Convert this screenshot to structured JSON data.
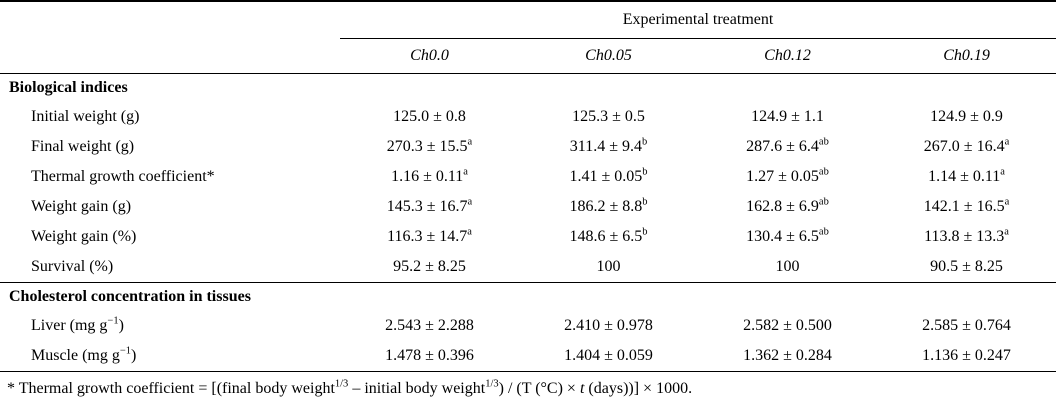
{
  "table": {
    "spanner_header": "Experimental treatment",
    "columns": [
      "Ch0.0",
      "Ch0.05",
      "Ch0.12",
      "Ch0.19"
    ],
    "sections": [
      {
        "title": "Biological indices",
        "rows": [
          {
            "label": {
              "pre": "Initial weight (g)",
              "sup": "",
              "post": ""
            },
            "cells": [
              {
                "v": "125.0 ± 0.8",
                "sup": ""
              },
              {
                "v": "125.3 ± 0.5",
                "sup": ""
              },
              {
                "v": "124.9 ± 1.1",
                "sup": ""
              },
              {
                "v": "124.9 ± 0.9",
                "sup": ""
              }
            ]
          },
          {
            "label": {
              "pre": "Final weight (g)",
              "sup": "",
              "post": ""
            },
            "cells": [
              {
                "v": "270.3 ± 15.5",
                "sup": "a"
              },
              {
                "v": "311.4 ± 9.4",
                "sup": "b"
              },
              {
                "v": "287.6 ± 6.4",
                "sup": "ab"
              },
              {
                "v": "267.0 ± 16.4",
                "sup": "a"
              }
            ]
          },
          {
            "label": {
              "pre": "Thermal growth coefficient*",
              "sup": "",
              "post": ""
            },
            "cells": [
              {
                "v": "1.16 ± 0.11",
                "sup": "a"
              },
              {
                "v": "1.41 ± 0.05",
                "sup": "b"
              },
              {
                "v": "1.27 ± 0.05",
                "sup": "ab"
              },
              {
                "v": "1.14 ± 0.11",
                "sup": "a"
              }
            ]
          },
          {
            "label": {
              "pre": "Weight gain (g)",
              "sup": "",
              "post": ""
            },
            "cells": [
              {
                "v": "145.3 ± 16.7",
                "sup": "a"
              },
              {
                "v": "186.2 ± 8.8",
                "sup": "b"
              },
              {
                "v": "162.8 ± 6.9",
                "sup": "ab"
              },
              {
                "v": "142.1 ± 16.5",
                "sup": "a"
              }
            ]
          },
          {
            "label": {
              "pre": "Weight gain (%)",
              "sup": "",
              "post": ""
            },
            "cells": [
              {
                "v": "116.3 ± 14.7",
                "sup": "a"
              },
              {
                "v": "148.6 ± 6.5",
                "sup": "b"
              },
              {
                "v": "130.4 ± 6.5",
                "sup": "ab"
              },
              {
                "v": "113.8 ± 13.3",
                "sup": "a"
              }
            ]
          },
          {
            "label": {
              "pre": "Survival (%)",
              "sup": "",
              "post": ""
            },
            "cells": [
              {
                "v": "95.2 ± 8.25",
                "sup": ""
              },
              {
                "v": "100",
                "sup": ""
              },
              {
                "v": "100",
                "sup": ""
              },
              {
                "v": "90.5 ± 8.25",
                "sup": ""
              }
            ]
          }
        ]
      },
      {
        "title": "Cholesterol concentration in tissues",
        "rows": [
          {
            "label": {
              "pre": "Liver (mg g",
              "sup": "−1",
              "post": ")"
            },
            "cells": [
              {
                "v": "2.543 ± 2.288",
                "sup": ""
              },
              {
                "v": "2.410 ± 0.978",
                "sup": ""
              },
              {
                "v": "2.582 ± 0.500",
                "sup": ""
              },
              {
                "v": "2.585 ± 0.764",
                "sup": ""
              }
            ]
          },
          {
            "label": {
              "pre": "Muscle (mg g",
              "sup": "−1",
              "post": ")"
            },
            "cells": [
              {
                "v": "1.478 ± 0.396",
                "sup": ""
              },
              {
                "v": "1.404 ± 0.059",
                "sup": ""
              },
              {
                "v": "1.362 ± 0.284",
                "sup": ""
              },
              {
                "v": "1.136 ± 0.247",
                "sup": ""
              }
            ]
          }
        ]
      }
    ]
  },
  "footnote": {
    "p1": "* Thermal growth coefficient = [(final body weight",
    "sup1": "1/3",
    "p2": " – initial body weight",
    "sup2": "1/3",
    "p3": ") / (T (°C) × ",
    "t_var": "t",
    "p4": " (days))] × 1000."
  }
}
